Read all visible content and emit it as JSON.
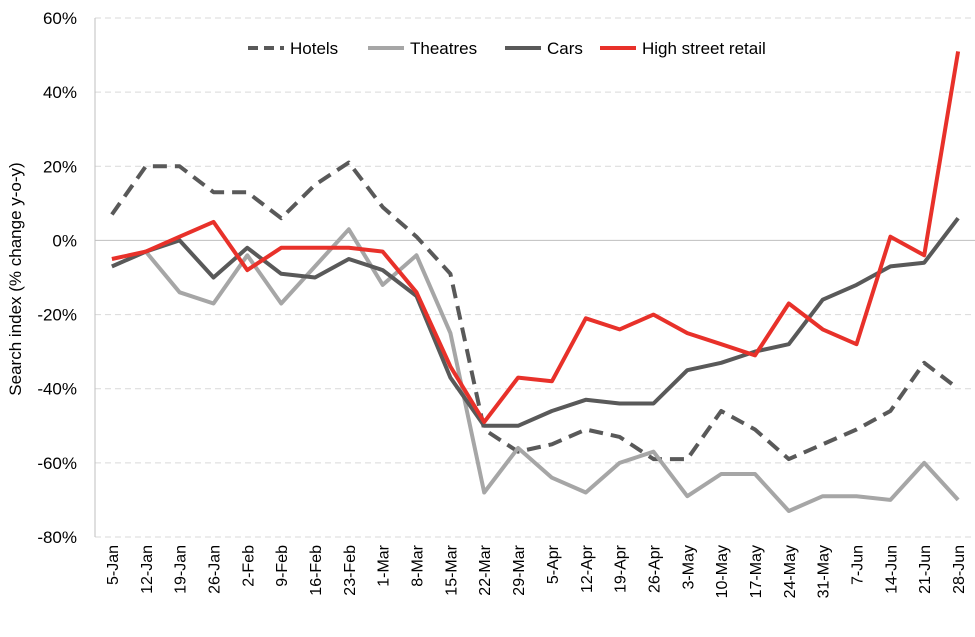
{
  "chart_data": {
    "type": "line",
    "title": "",
    "xlabel": "",
    "ylabel": "Search index (% change y-o-y)",
    "ylim": [
      -80,
      60
    ],
    "y_ticks": [
      60,
      40,
      20,
      0,
      -20,
      -40,
      -60,
      -80
    ],
    "y_tick_labels": [
      "60%",
      "40%",
      "20%",
      "0%",
      "-20%",
      "-40%",
      "-60%",
      "-80%"
    ],
    "grid": true,
    "legend_position": "top",
    "x": [
      "5-Jan",
      "12-Jan",
      "19-Jan",
      "26-Jan",
      "2-Feb",
      "9-Feb",
      "16-Feb",
      "23-Feb",
      "1-Mar",
      "8-Mar",
      "15-Mar",
      "22-Mar",
      "29-Mar",
      "5-Apr",
      "12-Apr",
      "19-Apr",
      "26-Apr",
      "3-May",
      "10-May",
      "17-May",
      "24-May",
      "31-May",
      "7-Jun",
      "14-Jun",
      "21-Jun",
      "28-Jun"
    ],
    "series": [
      {
        "name": "Hotels",
        "color": "#595959",
        "dash": "dashed",
        "values": [
          7,
          20,
          20,
          13,
          13,
          6,
          15,
          21,
          9,
          1,
          -9,
          -51,
          -57,
          -55,
          -51,
          -53,
          -59,
          -59,
          -46,
          -51,
          -59,
          -55,
          -51,
          -46,
          -33,
          -40
        ]
      },
      {
        "name": "Theatres",
        "color": "#a6a6a6",
        "dash": "solid",
        "values": [
          -7,
          -3,
          -14,
          -17,
          -4,
          -17,
          -7,
          3,
          -12,
          -4,
          -25,
          -68,
          -56,
          -64,
          -68,
          -60,
          -57,
          -69,
          -63,
          -63,
          -73,
          -69,
          -69,
          -70,
          -60,
          -70
        ]
      },
      {
        "name": "Cars",
        "color": "#595959",
        "dash": "solid",
        "values": [
          -7,
          -3,
          0,
          -10,
          -2,
          -9,
          -10,
          -5,
          -8,
          -15,
          -37,
          -50,
          -50,
          -46,
          -43,
          -44,
          -44,
          -35,
          -33,
          -30,
          -28,
          -16,
          -12,
          -7,
          -6,
          6
        ]
      },
      {
        "name": "High street retail",
        "color": "#e8312a",
        "dash": "solid",
        "values": [
          -5,
          -3,
          1,
          5,
          -8,
          -2,
          -2,
          -2,
          -3,
          -14,
          -34,
          -49,
          -37,
          -38,
          -21,
          -24,
          -20,
          -25,
          -28,
          -31,
          -17,
          -24,
          -28,
          1,
          -4,
          51
        ]
      }
    ]
  }
}
